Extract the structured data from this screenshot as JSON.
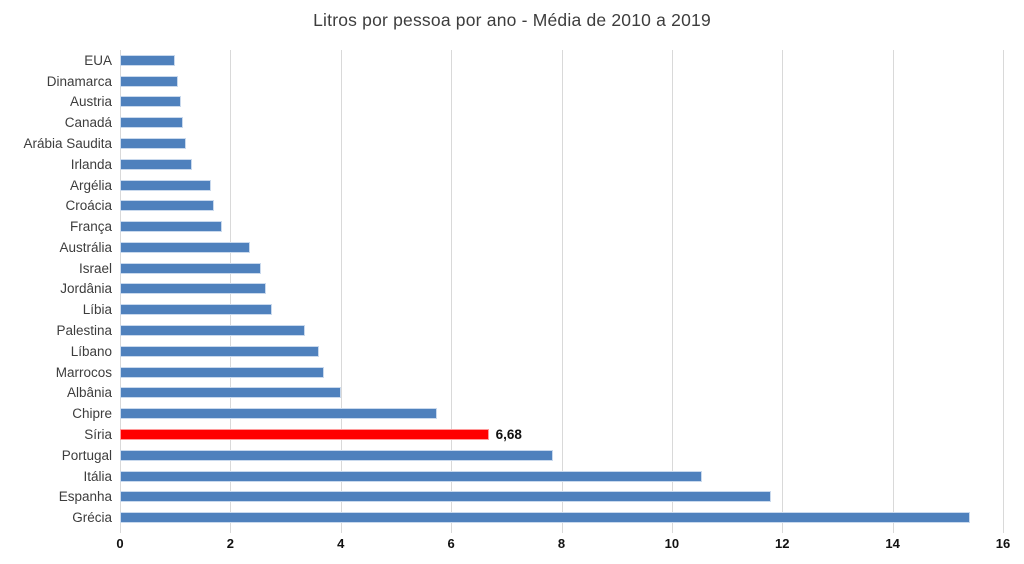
{
  "chart_data": {
    "type": "bar",
    "orientation": "horizontal",
    "title": "Litros por pessoa por ano - Média de 2010 a 2019",
    "categories": [
      "EUA",
      "Dinamarca",
      "Austria",
      "Canadá",
      "Arábia Saudita",
      "Irlanda",
      "Argélia",
      "Croácia",
      "França",
      "Austrália",
      "Israel",
      "Jordânia",
      "Líbia",
      "Palestina",
      "Líbano",
      "Marrocos",
      "Albânia",
      "Chipre",
      "Síria",
      "Portugal",
      "Itália",
      "Espanha",
      "Grécia"
    ],
    "values": [
      1.0,
      1.05,
      1.1,
      1.15,
      1.2,
      1.3,
      1.65,
      1.7,
      1.85,
      2.35,
      2.55,
      2.65,
      2.75,
      3.35,
      3.6,
      3.7,
      4.0,
      5.75,
      6.68,
      7.85,
      10.55,
      11.8,
      15.4
    ],
    "xlim": [
      0,
      16
    ],
    "x_tick_labels": [
      "0",
      "2",
      "4",
      "6",
      "8",
      "10",
      "12",
      "14",
      "16"
    ],
    "xlabel": "",
    "ylabel": "",
    "grid": "vertical",
    "gridline_color": "#d9d9d9",
    "bar_color": "#4f81bd",
    "highlight": {
      "category": "Síria",
      "color": "#ff0000",
      "value_label": "6,68"
    },
    "background_color": "#ffffff",
    "legend": "none"
  }
}
